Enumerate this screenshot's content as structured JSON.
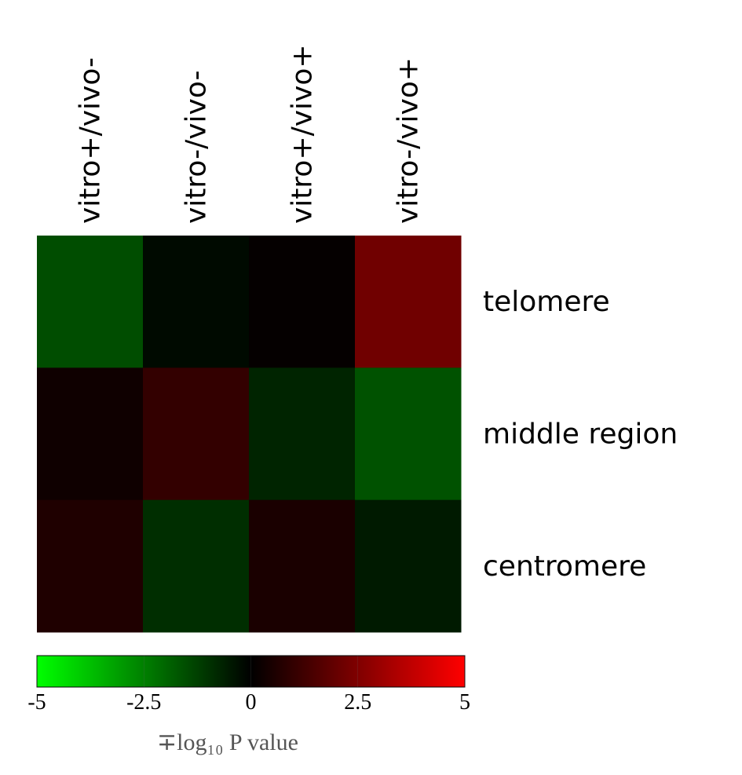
{
  "chart_data": {
    "type": "heatmap",
    "x_categories": [
      "vitro+/vivo-",
      "vitro-/vivo-",
      "vitro+/vivo+",
      "vitro-/vivo+"
    ],
    "y_categories": [
      "telomere",
      "middle region",
      "centromere"
    ],
    "values": [
      [
        -1.5,
        -0.2,
        0.1,
        2.2
      ],
      [
        0.3,
        1.0,
        -0.7,
        -1.6
      ],
      [
        0.6,
        -0.9,
        0.5,
        -0.5
      ]
    ],
    "colorscale": {
      "low": "#00ff00",
      "mid": "#000000",
      "high": "#ff0000"
    },
    "clim": [
      -5,
      5
    ],
    "cticks": [
      -5,
      -2.5,
      0,
      2.5,
      5
    ],
    "colorbar_label": "∓log₁₀ P value"
  }
}
